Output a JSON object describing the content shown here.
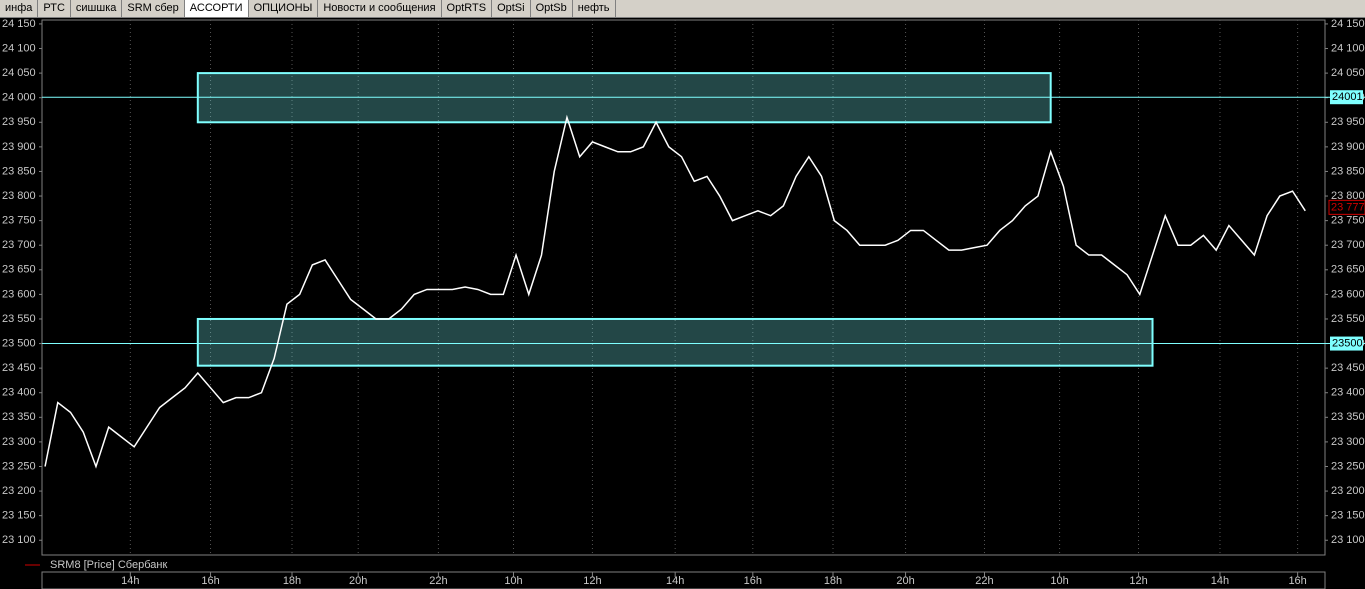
{
  "tabs": [
    "инфа",
    "РТС",
    "сишшка",
    "SRM сбер",
    "АССОРТИ",
    "ОПЦИОНЫ",
    "Новости и сообщения",
    "OptRTS",
    "OptSi",
    "OptSb",
    "нефть"
  ],
  "active_tab": 4,
  "chart_data": {
    "type": "line",
    "series": [
      {
        "name": "SRM8 [Price] Сбербанк",
        "color": "#ffffff",
        "legend_color": "#d00000",
        "values": [
          23250,
          23380,
          23360,
          23320,
          23250,
          23330,
          23310,
          23290,
          23330,
          23370,
          23390,
          23410,
          23440,
          23410,
          23380,
          23390,
          23390,
          23400,
          23470,
          23580,
          23600,
          23660,
          23670,
          23630,
          23590,
          23570,
          23550,
          23550,
          23570,
          23600,
          23610,
          23610,
          23610,
          23615,
          23610,
          23600,
          23600,
          23680,
          23600,
          23680,
          23850,
          23960,
          23880,
          23910,
          23900,
          23890,
          23890,
          23900,
          23950,
          23900,
          23880,
          23830,
          23840,
          23800,
          23750,
          23760,
          23770,
          23760,
          23780,
          23840,
          23880,
          23840,
          23750,
          23730,
          23700,
          23700,
          23700,
          23710,
          23730,
          23730,
          23710,
          23690,
          23690,
          23695,
          23700,
          23730,
          23750,
          23780,
          23800,
          23890,
          23820,
          23700,
          23680,
          23680,
          23660,
          23640,
          23600,
          23680,
          23760,
          23700,
          23700,
          23720,
          23690,
          23740,
          23710,
          23680,
          23760,
          23800,
          23810,
          23770
        ]
      }
    ],
    "xlim": [
      -0.24,
      100.55
    ],
    "ylim": [
      23070,
      24158
    ],
    "xticks": [
      {
        "value": 6.7,
        "label": "14h"
      },
      {
        "value": 13,
        "label": "16h"
      },
      {
        "value": 19.4,
        "label": "18h"
      },
      {
        "value": 24.6,
        "label": "20h"
      },
      {
        "value": 30.9,
        "label": "22h"
      },
      {
        "value": 36.8,
        "label": "10h"
      },
      {
        "value": 43,
        "label": "12h"
      },
      {
        "value": 49.5,
        "label": "14h"
      },
      {
        "value": 55.6,
        "label": "16h"
      },
      {
        "value": 61.9,
        "label": "18h"
      },
      {
        "value": 67.6,
        "label": "20h"
      },
      {
        "value": 73.8,
        "label": "22h"
      },
      {
        "value": 79.7,
        "label": "10h"
      },
      {
        "value": 85.9,
        "label": "12h"
      },
      {
        "value": 92.3,
        "label": "14h"
      },
      {
        "value": 98.4,
        "label": "16h"
      }
    ],
    "yticks": [
      {
        "value": 23100,
        "label": "23 100"
      },
      {
        "value": 23150,
        "label": "23 150"
      },
      {
        "value": 23200,
        "label": "23 200"
      },
      {
        "value": 23250,
        "label": "23 250"
      },
      {
        "value": 23300,
        "label": "23 300"
      },
      {
        "value": 23350,
        "label": "23 350"
      },
      {
        "value": 23400,
        "label": "23 400"
      },
      {
        "value": 23450,
        "label": "23 450"
      },
      {
        "value": 23500,
        "label": "23 500"
      },
      {
        "value": 23550,
        "label": "23 550"
      },
      {
        "value": 23600,
        "label": "23 600"
      },
      {
        "value": 23650,
        "label": "23 650"
      },
      {
        "value": 23700,
        "label": "23 700"
      },
      {
        "value": 23750,
        "label": "23 750"
      },
      {
        "value": 23800,
        "label": "23 800"
      },
      {
        "value": 23850,
        "label": "23 850"
      },
      {
        "value": 23900,
        "label": "23 900"
      },
      {
        "value": 23950,
        "label": "23 950"
      },
      {
        "value": 24000,
        "label": "24 000"
      },
      {
        "value": 24050,
        "label": "24 050"
      },
      {
        "value": 24100,
        "label": "24 100"
      },
      {
        "value": 24150,
        "label": "24 150"
      }
    ],
    "levels": [
      {
        "value": 24001,
        "label": "24001"
      },
      {
        "value": 23500,
        "label": "23500"
      }
    ],
    "zones": [
      {
        "x0": 12,
        "x1": 79,
        "y0": 23950,
        "y1": 24050
      },
      {
        "x0": 12,
        "x1": 87,
        "y0": 23455,
        "y1": 23550
      }
    ],
    "last": {
      "value": 23777,
      "label": "23 777"
    },
    "zone_color": "#7fffff",
    "last_color": "#d00000"
  }
}
